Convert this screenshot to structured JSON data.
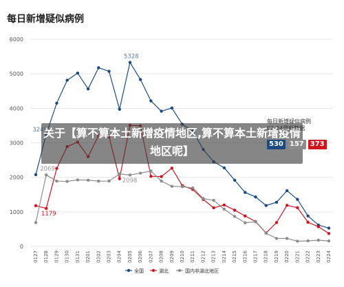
{
  "chart_data": {
    "type": "line",
    "title": "每日新增疑似病例",
    "ylim": [
      0,
      6000
    ],
    "yticks": [
      0,
      1000,
      2000,
      3000,
      4000,
      5000,
      6000
    ],
    "categories": [
      "0127",
      "0128",
      "0129",
      "0130",
      "0131",
      "0201",
      "0202",
      "0203",
      "0204",
      "0205",
      "0206",
      "0207",
      "0208",
      "0209",
      "0210",
      "0211",
      "0212",
      "0213",
      "0214",
      "0215",
      "0216",
      "0217",
      "0218",
      "0219",
      "0220",
      "0221",
      "0222",
      "0223",
      "0224"
    ],
    "series": [
      {
        "name": "全国",
        "color": "#1a4a82",
        "values": [
          2077,
          3248,
          4148,
          4812,
          5019,
          4562,
          5173,
          5072,
          3971,
          5328,
          4833,
          4214,
          3916,
          4008,
          3536,
          3342,
          2807,
          2450,
          2277,
          1918,
          1563,
          1432,
          1185,
          1277,
          1614,
          1361,
          882,
          620,
          530
        ]
      },
      {
        "name": "湖北",
        "color": "#d0141e",
        "values": [
          1179,
          1100,
          2258,
          2890,
          3022,
          2600,
          3209,
          3180,
          1960,
          3506,
          3493,
          2030,
          2022,
          2267,
          1760,
          1650,
          1360,
          1117,
          1200,
          1050,
          880,
          720,
          390,
          690,
          1190,
          1120,
          700,
          570,
          373
        ]
      },
      {
        "name": "国内非湖北地区",
        "color": "#8c8c8c",
        "values": [
          690,
          2069,
          1890,
          1882,
          1926,
          1918,
          1890,
          1892,
          2098,
          2068,
          2121,
          2183,
          1892,
          1741,
          1730,
          1692,
          1387,
          1333,
          1077,
          868,
          683,
          712,
          381,
          230,
          230,
          150,
          160,
          180,
          157
        ]
      }
    ],
    "annotations": [
      {
        "text": "5328"
      },
      {
        "text": "3248"
      },
      {
        "text": "2069"
      },
      {
        "text": "2098"
      },
      {
        "text": "1179"
      }
    ]
  },
  "overlay": {
    "banner_text": "关于【算不算本土新增疫情地区,算不算本土新增疫情地区呢】",
    "info_title": "每日新增疑似病例",
    "info_subtitle": "02-24最新数据",
    "badges": [
      {
        "value": "530",
        "color": "#1a4a82"
      },
      {
        "value": "157",
        "color": "#8c8c8c"
      },
      {
        "value": "373",
        "color": "#d0141e"
      }
    ]
  }
}
